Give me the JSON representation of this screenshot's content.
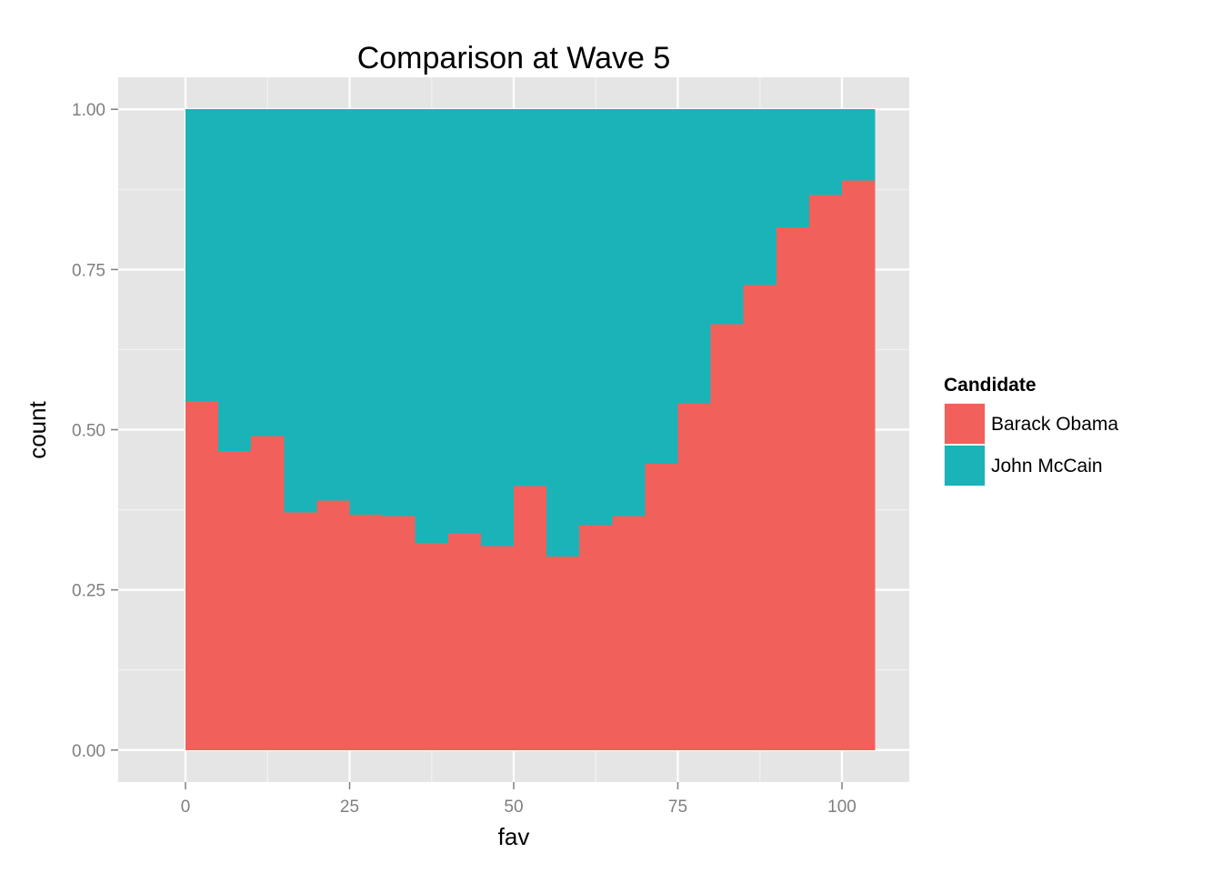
{
  "chart_data": {
    "type": "bar",
    "stacked": true,
    "position": "fill",
    "title": "Comparison at Wave 5",
    "xlabel": "fav",
    "ylabel": "count",
    "xlim": [
      -10.25,
      110.25
    ],
    "ylim": [
      -0.05,
      1.05
    ],
    "x_ticks": [
      0,
      25,
      50,
      75,
      100
    ],
    "x_tick_labels": [
      "0",
      "25",
      "50",
      "75",
      "100"
    ],
    "y_ticks": [
      0,
      0.25,
      0.5,
      0.75,
      1.0
    ],
    "y_tick_labels": [
      "0.00",
      "0.25",
      "0.50",
      "0.75",
      "1.00"
    ],
    "bin_width": 5,
    "bin_starts": [
      0,
      5,
      10,
      15,
      20,
      25,
      30,
      35,
      40,
      45,
      50,
      55,
      60,
      65,
      70,
      75,
      80,
      85,
      90,
      95,
      100
    ],
    "legend": {
      "title": "Candidate",
      "placement": "right"
    },
    "grid": true,
    "series": [
      {
        "name": "Barack Obama",
        "color": "#F2605B",
        "values": [
          0.545,
          0.467,
          0.49,
          0.371,
          0.389,
          0.367,
          0.365,
          0.323,
          0.339,
          0.318,
          0.412,
          0.302,
          0.351,
          0.365,
          0.447,
          0.541,
          0.665,
          0.726,
          0.816,
          0.866,
          0.889
        ]
      },
      {
        "name": "John McCain",
        "color": "#1AB3B8",
        "values": [
          0.455,
          0.533,
          0.51,
          0.629,
          0.611,
          0.633,
          0.635,
          0.677,
          0.661,
          0.682,
          0.588,
          0.698,
          0.649,
          0.635,
          0.553,
          0.459,
          0.335,
          0.274,
          0.184,
          0.134,
          0.111
        ]
      }
    ]
  }
}
